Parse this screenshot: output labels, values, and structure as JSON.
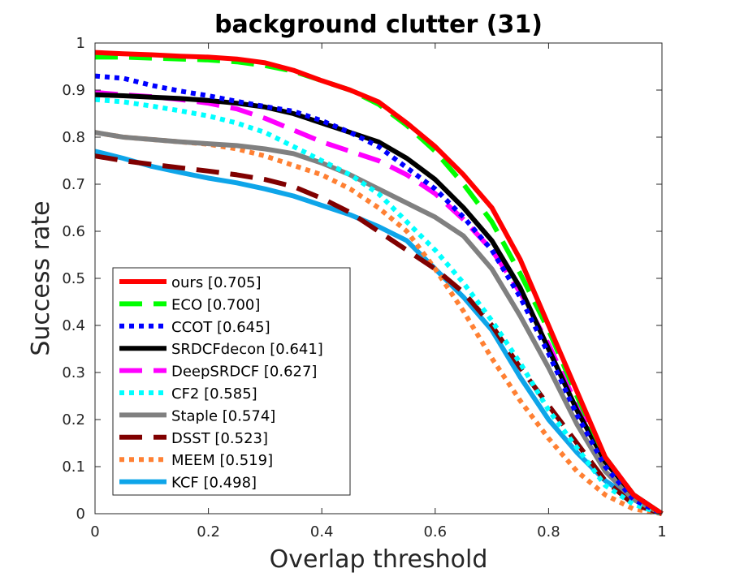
{
  "chart_data": {
    "type": "line",
    "title": "background clutter (31)",
    "xlabel": "Overlap threshold",
    "ylabel": "Success rate",
    "xlim": [
      0,
      1
    ],
    "ylim": [
      0,
      1
    ],
    "x_ticks": [
      "0",
      "0.2",
      "0.4",
      "0.6",
      "0.8",
      "1"
    ],
    "y_ticks": [
      "0",
      "0.1",
      "0.2",
      "0.3",
      "0.4",
      "0.5",
      "0.6",
      "0.7",
      "0.8",
      "0.9",
      "1"
    ],
    "grid": false,
    "legend_position": "bottom-left",
    "x": [
      0,
      0.05,
      0.1,
      0.15,
      0.2,
      0.25,
      0.3,
      0.35,
      0.4,
      0.45,
      0.5,
      0.55,
      0.6,
      0.65,
      0.7,
      0.75,
      0.8,
      0.85,
      0.9,
      0.95,
      1
    ],
    "series": [
      {
        "name": "ours [0.705]",
        "color": "#ff0000",
        "dash": "solid",
        "values": [
          0.98,
          0.977,
          0.975,
          0.972,
          0.97,
          0.966,
          0.958,
          0.942,
          0.92,
          0.9,
          0.875,
          0.83,
          0.78,
          0.72,
          0.65,
          0.54,
          0.4,
          0.26,
          0.12,
          0.04,
          0.0
        ]
      },
      {
        "name": "ECO [0.700]",
        "color": "#00ff00",
        "dash": "long",
        "values": [
          0.97,
          0.97,
          0.968,
          0.966,
          0.964,
          0.96,
          0.952,
          0.94,
          0.92,
          0.9,
          0.87,
          0.825,
          0.77,
          0.7,
          0.62,
          0.51,
          0.39,
          0.25,
          0.12,
          0.04,
          0.0
        ]
      },
      {
        "name": "CCOT [0.645]",
        "color": "#0000ff",
        "dash": "dot",
        "values": [
          0.93,
          0.925,
          0.91,
          0.898,
          0.888,
          0.876,
          0.865,
          0.855,
          0.835,
          0.81,
          0.78,
          0.735,
          0.69,
          0.63,
          0.56,
          0.46,
          0.34,
          0.21,
          0.1,
          0.03,
          0.0
        ]
      },
      {
        "name": "SRDCFdecon [0.641]",
        "color": "#000000",
        "dash": "solid",
        "values": [
          0.89,
          0.888,
          0.885,
          0.882,
          0.878,
          0.872,
          0.864,
          0.85,
          0.83,
          0.81,
          0.79,
          0.755,
          0.71,
          0.65,
          0.58,
          0.48,
          0.35,
          0.22,
          0.11,
          0.04,
          0.0
        ]
      },
      {
        "name": "DeepSRDCF [0.627]",
        "color": "#ff00ff",
        "dash": "long",
        "values": [
          0.895,
          0.89,
          0.886,
          0.88,
          0.872,
          0.86,
          0.84,
          0.815,
          0.79,
          0.77,
          0.75,
          0.72,
          0.68,
          0.625,
          0.56,
          0.47,
          0.36,
          0.23,
          0.12,
          0.04,
          0.0
        ]
      },
      {
        "name": "CF2 [0.585]",
        "color": "#00ffff",
        "dash": "dot",
        "values": [
          0.88,
          0.875,
          0.866,
          0.856,
          0.845,
          0.83,
          0.81,
          0.78,
          0.75,
          0.72,
          0.68,
          0.62,
          0.56,
          0.49,
          0.41,
          0.32,
          0.22,
          0.14,
          0.06,
          0.02,
          0.0
        ]
      },
      {
        "name": "Staple [0.574]",
        "color": "#808080",
        "dash": "solid",
        "values": [
          0.81,
          0.8,
          0.795,
          0.79,
          0.786,
          0.782,
          0.775,
          0.765,
          0.745,
          0.72,
          0.69,
          0.66,
          0.63,
          0.59,
          0.52,
          0.42,
          0.31,
          0.19,
          0.09,
          0.03,
          0.0
        ]
      },
      {
        "name": "DSST [0.523]",
        "color": "#800000",
        "dash": "long",
        "values": [
          0.76,
          0.75,
          0.742,
          0.735,
          0.728,
          0.72,
          0.71,
          0.695,
          0.67,
          0.64,
          0.6,
          0.56,
          0.52,
          0.47,
          0.4,
          0.31,
          0.23,
          0.15,
          0.07,
          0.02,
          0.0
        ]
      },
      {
        "name": "MEEM [0.519]",
        "color": "#ff8033",
        "dash": "dot",
        "values": [
          0.81,
          0.8,
          0.795,
          0.79,
          0.785,
          0.775,
          0.76,
          0.74,
          0.72,
          0.69,
          0.65,
          0.6,
          0.52,
          0.43,
          0.33,
          0.24,
          0.16,
          0.09,
          0.04,
          0.01,
          0.0
        ]
      },
      {
        "name": "KCF [0.498]",
        "color": "#0ea5e9",
        "dash": "solid",
        "values": [
          0.77,
          0.755,
          0.738,
          0.725,
          0.713,
          0.703,
          0.69,
          0.675,
          0.655,
          0.635,
          0.61,
          0.58,
          0.52,
          0.46,
          0.39,
          0.29,
          0.2,
          0.13,
          0.07,
          0.03,
          0.0
        ]
      }
    ]
  }
}
